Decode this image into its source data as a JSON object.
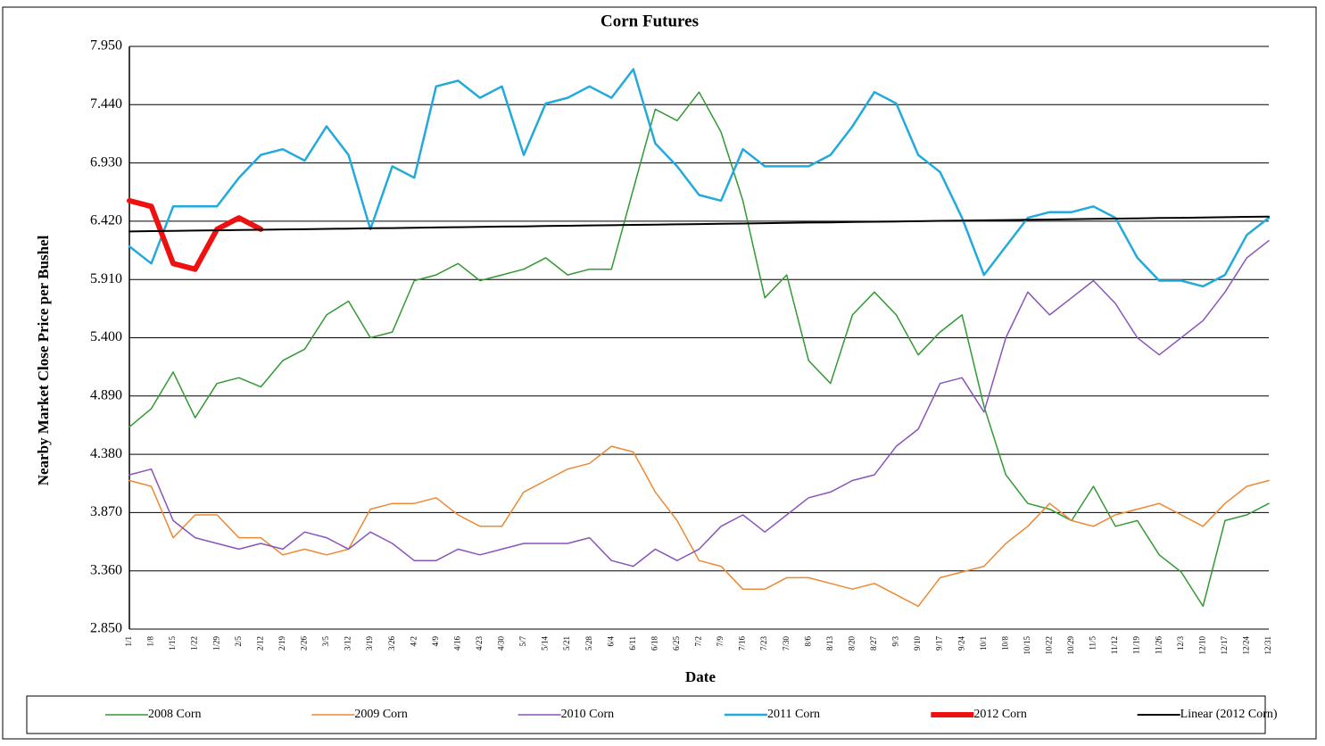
{
  "chart_data": {
    "type": "line",
    "title": "Corn Futures",
    "x_label": "Date",
    "y_label": "Nearby Market Close Price per Bushel",
    "categories": [
      "1/1",
      "1/8",
      "1/15",
      "1/22",
      "1/29",
      "2/5",
      "2/12",
      "2/19",
      "2/26",
      "3/5",
      "3/12",
      "3/19",
      "3/26",
      "4/2",
      "4/9",
      "4/16",
      "4/23",
      "4/30",
      "5/7",
      "5/14",
      "5/21",
      "5/28",
      "6/4",
      "6/11",
      "6/18",
      "6/25",
      "7/2",
      "7/9",
      "7/16",
      "7/23",
      "7/30",
      "8/6",
      "8/13",
      "8/20",
      "8/27",
      "9/3",
      "9/10",
      "9/17",
      "9/24",
      "10/1",
      "10/8",
      "10/15",
      "10/22",
      "10/29",
      "11/5",
      "11/12",
      "11/19",
      "11/26",
      "12/3",
      "12/10",
      "12/17",
      "12/24",
      "12/31"
    ],
    "ylim": [
      2.85,
      7.95
    ],
    "yticks": [
      {
        "value": 2.85,
        "label": "2.850"
      },
      {
        "value": 3.36,
        "label": "3.360"
      },
      {
        "value": 3.87,
        "label": "3.870"
      },
      {
        "value": 4.38,
        "label": "4.380"
      },
      {
        "value": 4.89,
        "label": "4.890"
      },
      {
        "value": 5.4,
        "label": "5.400"
      },
      {
        "value": 5.91,
        "label": "5.910"
      },
      {
        "value": 6.42,
        "label": "6.420"
      },
      {
        "value": 6.93,
        "label": "6.930"
      },
      {
        "value": 7.44,
        "label": "7.440"
      },
      {
        "value": 7.95,
        "label": "7.950"
      }
    ],
    "grid": true,
    "legend": "bottom",
    "series": [
      {
        "name": "2008 Corn",
        "color": "#339933",
        "values": [
          4.62,
          4.78,
          5.1,
          4.7,
          5.0,
          5.05,
          4.97,
          5.2,
          5.3,
          5.6,
          5.72,
          5.4,
          5.45,
          5.9,
          5.95,
          6.05,
          5.9,
          5.95,
          6.0,
          6.1,
          5.95,
          6.0,
          6.0,
          6.7,
          7.4,
          7.3,
          7.55,
          7.2,
          6.6,
          5.75,
          5.95,
          5.2,
          5.0,
          5.6,
          5.8,
          5.6,
          5.25,
          5.45,
          5.6,
          4.8,
          4.2,
          3.95,
          3.9,
          3.8,
          4.1,
          3.75,
          3.8,
          3.5,
          3.35,
          3.05,
          3.8,
          3.85,
          3.95
        ]
      },
      {
        "name": "2009 Corn",
        "color": "#ee8833",
        "values": [
          4.15,
          4.1,
          3.65,
          3.85,
          3.85,
          3.65,
          3.65,
          3.5,
          3.55,
          3.5,
          3.55,
          3.9,
          3.95,
          3.95,
          4.0,
          3.85,
          3.75,
          3.75,
          4.05,
          4.15,
          4.25,
          4.3,
          4.45,
          4.4,
          4.05,
          3.8,
          3.45,
          3.4,
          3.2,
          3.2,
          3.3,
          3.3,
          3.25,
          3.2,
          3.25,
          3.15,
          3.05,
          3.3,
          3.35,
          3.4,
          3.6,
          3.75,
          3.95,
          3.8,
          3.75,
          3.85,
          3.9,
          3.95,
          3.85,
          3.75,
          3.95,
          4.1,
          4.15
        ]
      },
      {
        "name": "2010 Corn",
        "color": "#8855bb",
        "values": [
          4.2,
          4.25,
          3.8,
          3.65,
          3.6,
          3.55,
          3.6,
          3.55,
          3.7,
          3.65,
          3.55,
          3.7,
          3.6,
          3.45,
          3.45,
          3.55,
          3.5,
          3.55,
          3.6,
          3.6,
          3.6,
          3.65,
          3.45,
          3.4,
          3.55,
          3.45,
          3.55,
          3.75,
          3.85,
          3.7,
          3.85,
          4.0,
          4.05,
          4.15,
          4.2,
          4.45,
          4.6,
          5.0,
          5.05,
          4.75,
          5.4,
          5.8,
          5.6,
          5.75,
          5.9,
          5.7,
          5.4,
          5.25,
          5.4,
          5.55,
          5.8,
          6.1,
          6.25
        ]
      },
      {
        "name": "2011 Corn",
        "color": "#22aadd",
        "values": [
          6.2,
          6.05,
          6.55,
          6.55,
          6.55,
          6.8,
          7.0,
          7.05,
          6.95,
          7.25,
          7.0,
          6.35,
          6.9,
          6.8,
          7.6,
          7.65,
          7.5,
          7.6,
          7.0,
          7.45,
          7.5,
          7.6,
          7.5,
          7.75,
          7.1,
          6.9,
          6.65,
          6.6,
          7.05,
          6.9,
          6.9,
          6.9,
          7.0,
          7.25,
          7.55,
          7.45,
          7.0,
          6.85,
          6.45,
          5.95,
          6.2,
          6.45,
          6.5,
          6.5,
          6.55,
          6.45,
          6.1,
          5.9,
          5.9,
          5.85,
          5.95,
          6.3,
          6.45
        ]
      },
      {
        "name": "2012 Corn",
        "color": "#ee1111",
        "values": [
          6.6,
          6.55,
          6.05,
          6.0,
          6.35,
          6.45,
          6.35,
          null,
          null,
          null,
          null,
          null,
          null,
          null,
          null,
          null,
          null,
          null,
          null,
          null,
          null,
          null,
          null,
          null,
          null,
          null,
          null,
          null,
          null,
          null,
          null,
          null,
          null,
          null,
          null,
          null,
          null,
          null,
          null,
          null,
          null,
          null,
          null,
          null,
          null,
          null,
          null,
          null,
          null,
          null,
          null,
          null,
          null
        ]
      },
      {
        "name": "Linear (2012 Corn)",
        "color": "#000000",
        "values": [
          6.33,
          6.333,
          6.335,
          6.338,
          6.34,
          6.343,
          6.345,
          6.348,
          6.35,
          6.353,
          6.355,
          6.358,
          6.36,
          6.363,
          6.365,
          6.368,
          6.37,
          6.373,
          6.375,
          6.378,
          6.38,
          6.383,
          6.385,
          6.388,
          6.39,
          6.393,
          6.395,
          6.398,
          6.4,
          6.403,
          6.405,
          6.408,
          6.41,
          6.413,
          6.415,
          6.418,
          6.42,
          6.423,
          6.425,
          6.428,
          6.43,
          6.433,
          6.435,
          6.438,
          6.44,
          6.443,
          6.445,
          6.448,
          6.45,
          6.453,
          6.455,
          6.458,
          6.46
        ]
      }
    ]
  }
}
